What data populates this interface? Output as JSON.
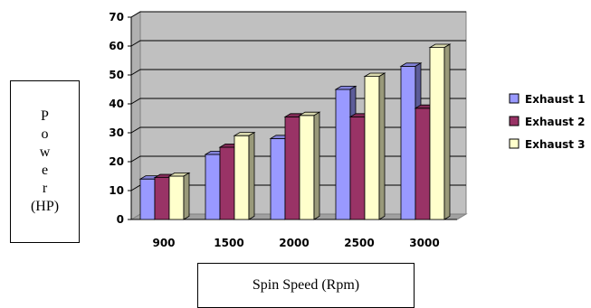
{
  "chart_data": {
    "type": "bar",
    "title": "",
    "xlabel": "Spin Speed (Rpm)",
    "ylabel_lines": [
      "P",
      "o",
      "w",
      "e",
      "r",
      "(HP)"
    ],
    "categories": [
      "900",
      "1500",
      "2000",
      "2500",
      "3000"
    ],
    "series": [
      {
        "name": "Exhaust 1",
        "color": "#9999ff",
        "values": [
          14,
          22.5,
          28,
          45,
          53
        ]
      },
      {
        "name": "Exhaust 2",
        "color": "#993366",
        "values": [
          14.5,
          25,
          35.5,
          35.5,
          38.5
        ]
      },
      {
        "name": "Exhaust 3",
        "color": "#ffffcc",
        "values": [
          15,
          29,
          36,
          49.5,
          59.5
        ]
      }
    ],
    "ylim": [
      0,
      70
    ],
    "yticks": [
      0,
      10,
      20,
      30,
      40,
      50,
      60,
      70
    ],
    "grid": true,
    "three_d": true,
    "plot_background": "#c0c0c0",
    "legend_position": "right"
  }
}
